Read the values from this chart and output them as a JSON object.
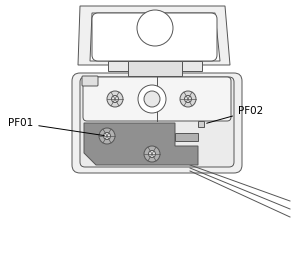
{
  "background_color": "#ffffff",
  "label_pf01": "PF01",
  "label_pf02": "PF02",
  "line_color": "#555555",
  "lw": 0.7
}
